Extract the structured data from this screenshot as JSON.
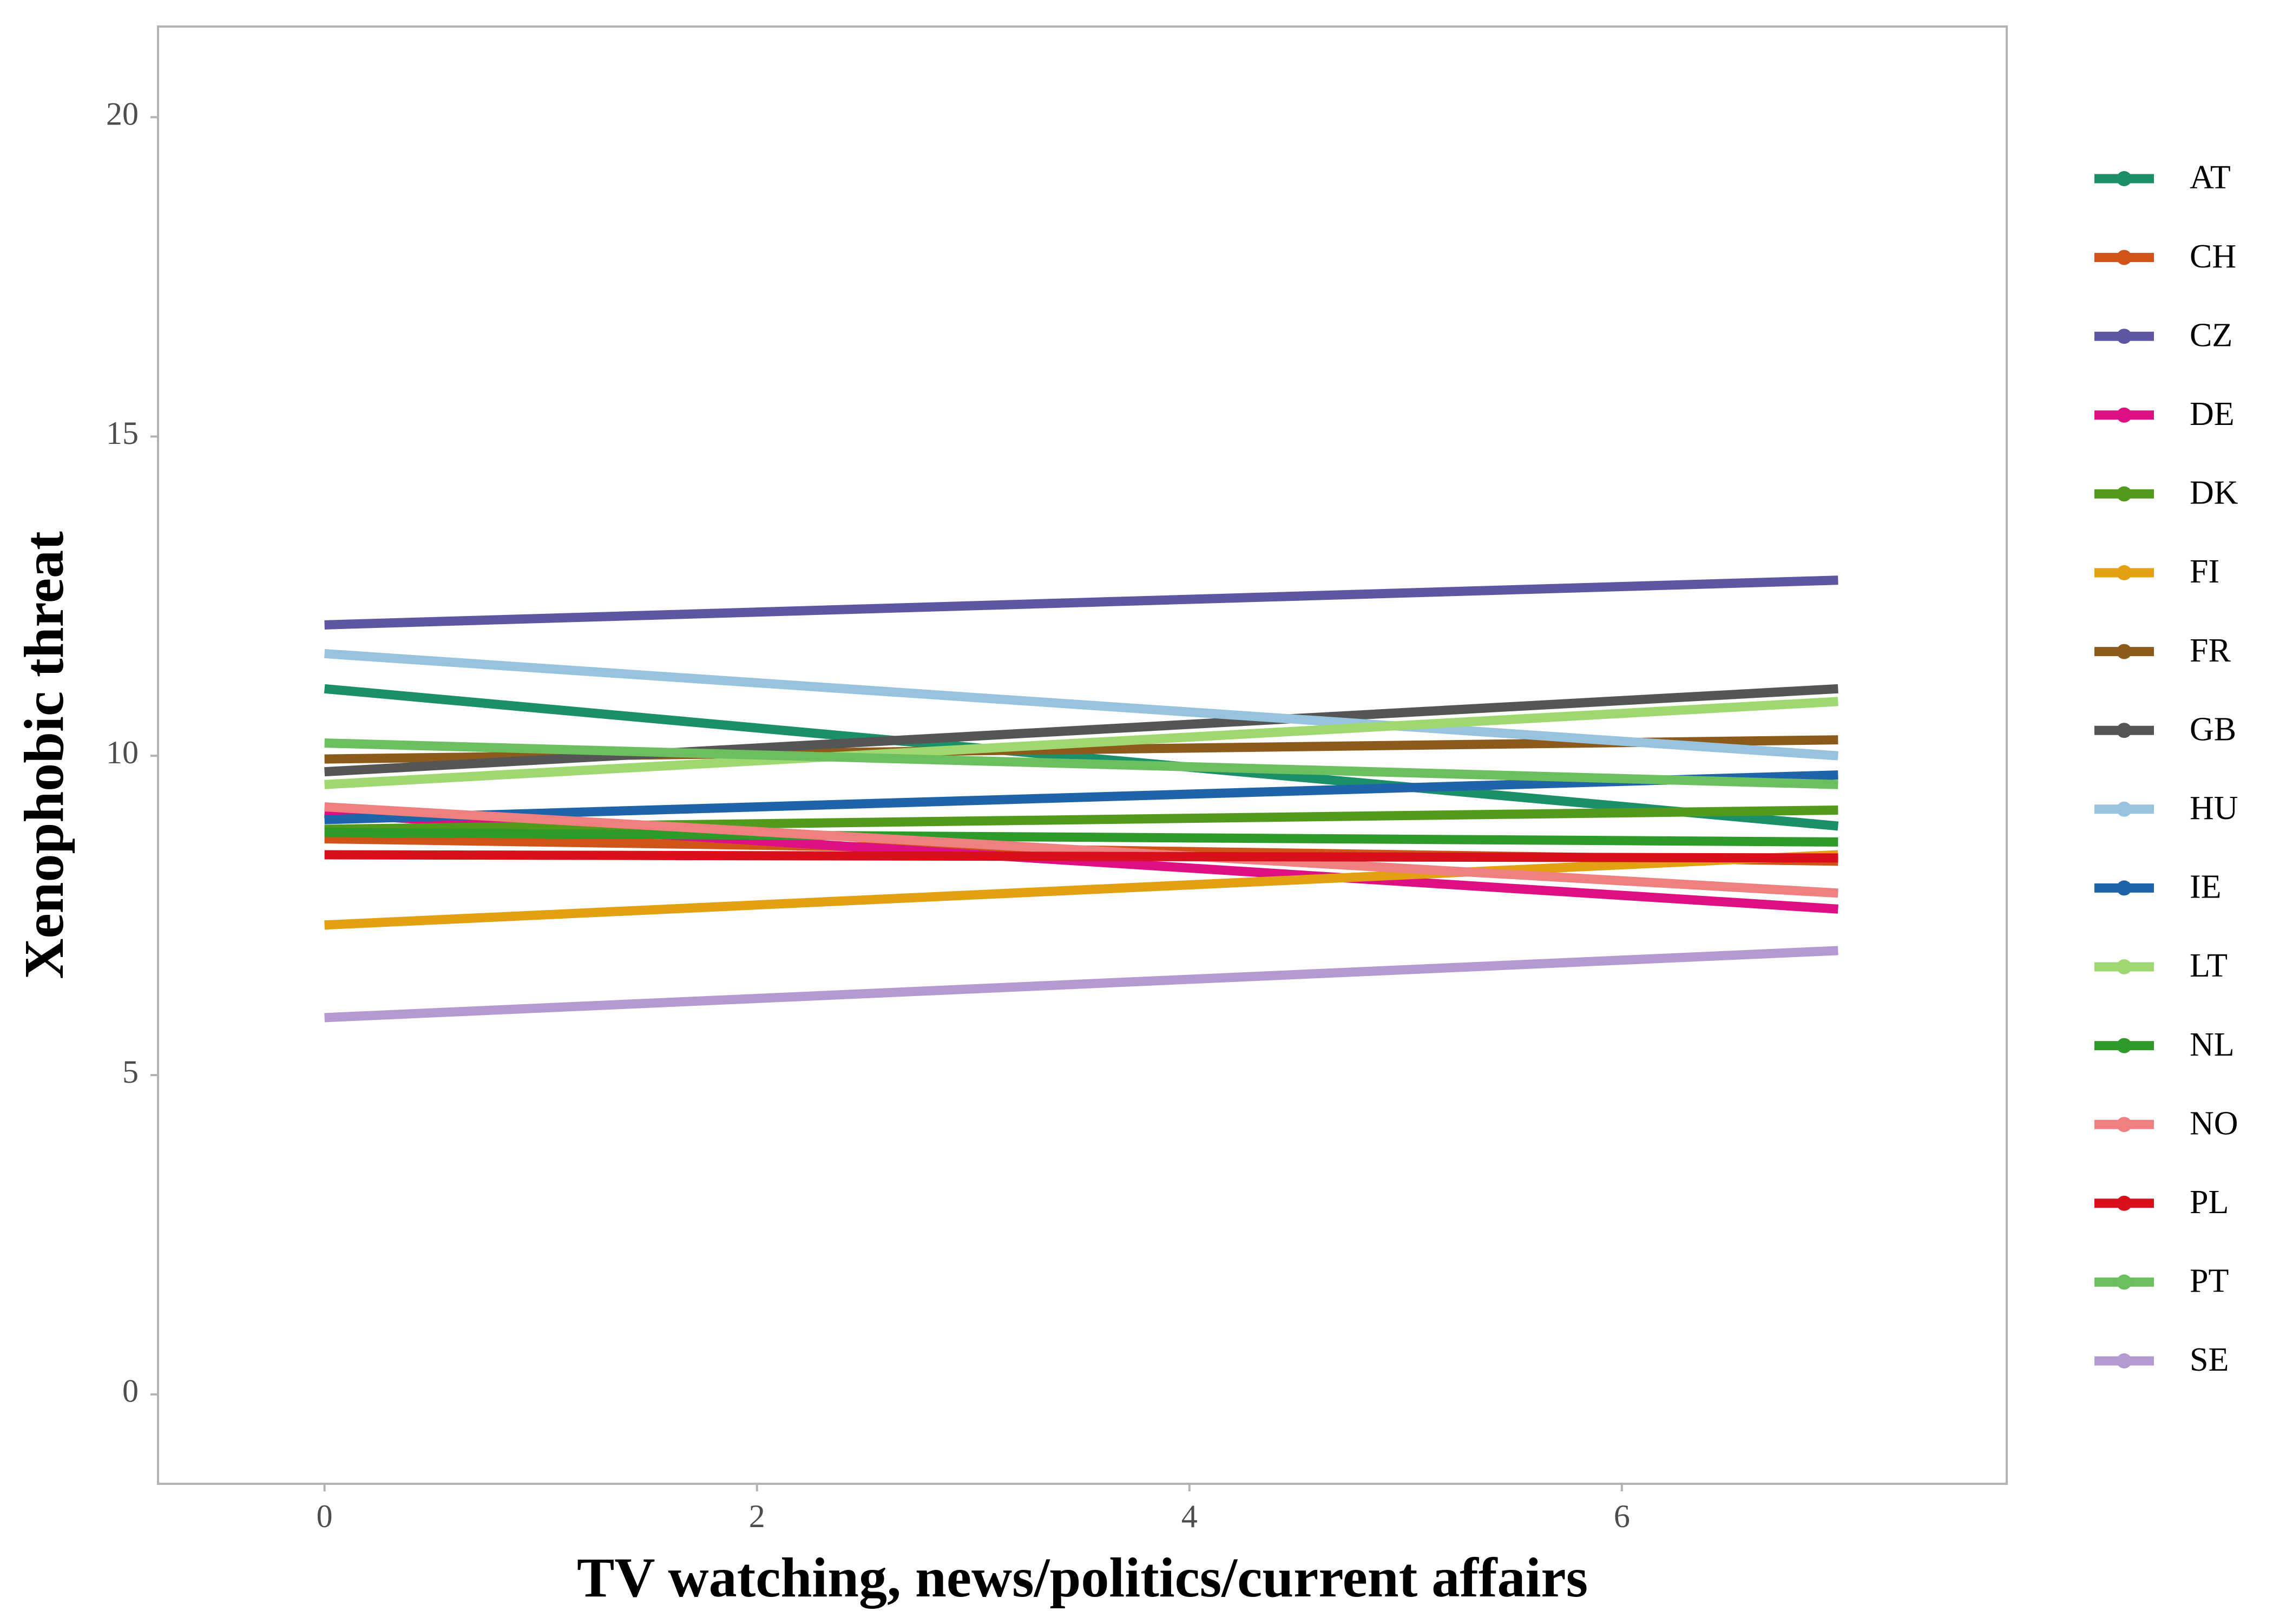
{
  "chart_data": {
    "type": "line",
    "x_label": "TV watching, news/politics/current affairs",
    "y_label": "Xenophobic threat",
    "x": [
      0,
      7
    ],
    "xlim": [
      -0.77,
      7.78
    ],
    "ylim": [
      -1.4,
      21.42
    ],
    "xticks": [
      0,
      2,
      4,
      6
    ],
    "yticks": [
      0,
      5,
      10,
      15,
      20
    ],
    "grid": false,
    "legend": "right",
    "series": [
      {
        "name": "AT",
        "color": "#1b8f6a",
        "values": [
          11.05,
          8.9
        ]
      },
      {
        "name": "CH",
        "color": "#d0531a",
        "values": [
          8.7,
          8.35
        ]
      },
      {
        "name": "CZ",
        "color": "#5e55a3",
        "values": [
          12.05,
          12.75
        ]
      },
      {
        "name": "DE",
        "color": "#de0f82",
        "values": [
          9.1,
          7.6
        ]
      },
      {
        "name": "DK",
        "color": "#529a1c",
        "values": [
          8.85,
          9.15
        ]
      },
      {
        "name": "FI",
        "color": "#e3a012",
        "values": [
          7.35,
          8.45
        ]
      },
      {
        "name": "FR",
        "color": "#8c5a1a",
        "values": [
          9.95,
          10.25
        ]
      },
      {
        "name": "GB",
        "color": "#555555",
        "values": [
          9.75,
          11.05
        ]
      },
      {
        "name": "HU",
        "color": "#98c3df",
        "values": [
          11.6,
          10.0
        ]
      },
      {
        "name": "IE",
        "color": "#1f64a8",
        "values": [
          9.0,
          9.7
        ]
      },
      {
        "name": "LT",
        "color": "#a0d870",
        "values": [
          9.55,
          10.85
        ]
      },
      {
        "name": "NL",
        "color": "#2e9a2a",
        "values": [
          8.8,
          8.65
        ]
      },
      {
        "name": "NO",
        "color": "#f08080",
        "values": [
          9.2,
          7.85
        ]
      },
      {
        "name": "PL",
        "color": "#d7101b",
        "values": [
          8.45,
          8.4
        ]
      },
      {
        "name": "PT",
        "color": "#6bbf5f",
        "values": [
          10.2,
          9.55
        ]
      },
      {
        "name": "SE",
        "color": "#b39ad0",
        "values": [
          5.9,
          6.95
        ]
      }
    ]
  }
}
